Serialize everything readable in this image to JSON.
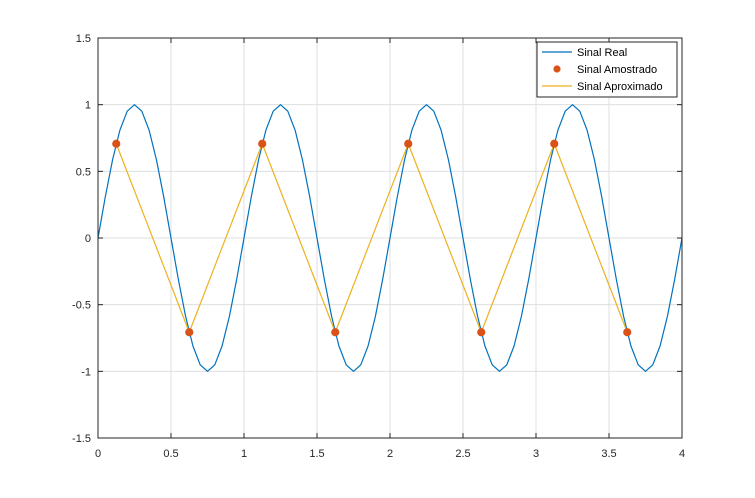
{
  "chart_data": {
    "type": "line",
    "title": "",
    "xlabel": "",
    "ylabel": "",
    "xlim": [
      0,
      4
    ],
    "ylim": [
      -1.5,
      1.5
    ],
    "xticks": [
      0,
      0.5,
      1,
      1.5,
      2,
      2.5,
      3,
      3.5,
      4
    ],
    "xtick_labels": [
      "0",
      "0.5",
      "1",
      "1.5",
      "2",
      "2.5",
      "3",
      "3.5",
      "4"
    ],
    "yticks": [
      -1.5,
      -1,
      -0.5,
      0,
      0.5,
      1,
      1.5
    ],
    "ytick_labels": [
      "-1.5",
      "-1",
      "-0.5",
      "0",
      "0.5",
      "1",
      "1.5"
    ],
    "grid": true,
    "legend_position": "top-right",
    "series": [
      {
        "name": "Sinal Real",
        "style": "line",
        "color": "#0072BD",
        "x": [
          0,
          0.05,
          0.1,
          0.15,
          0.2,
          0.25,
          0.3,
          0.35,
          0.4,
          0.45,
          0.5,
          0.55,
          0.6,
          0.65,
          0.7,
          0.75,
          0.8,
          0.85,
          0.9,
          0.95,
          1,
          1.05,
          1.1,
          1.15,
          1.2,
          1.25,
          1.3,
          1.35,
          1.4,
          1.45,
          1.5,
          1.55,
          1.6,
          1.65,
          1.7,
          1.75,
          1.8,
          1.85,
          1.9,
          1.95,
          2,
          2.05,
          2.1,
          2.15,
          2.2,
          2.25,
          2.3,
          2.35,
          2.4,
          2.45,
          2.5,
          2.55,
          2.6,
          2.65,
          2.7,
          2.75,
          2.8,
          2.85,
          2.9,
          2.95,
          3,
          3.05,
          3.1,
          3.15,
          3.2,
          3.25,
          3.3,
          3.35,
          3.4,
          3.45,
          3.5,
          3.55,
          3.6,
          3.65,
          3.7,
          3.75,
          3.8,
          3.85,
          3.9,
          3.95,
          4
        ],
        "y": [
          0,
          0.309,
          0.588,
          0.809,
          0.951,
          1,
          0.951,
          0.809,
          0.588,
          0.309,
          0,
          -0.309,
          -0.588,
          -0.809,
          -0.951,
          -1,
          -0.951,
          -0.809,
          -0.588,
          -0.309,
          0,
          0.309,
          0.588,
          0.809,
          0.951,
          1,
          0.951,
          0.809,
          0.588,
          0.309,
          0,
          -0.309,
          -0.588,
          -0.809,
          -0.951,
          -1,
          -0.951,
          -0.809,
          -0.588,
          -0.309,
          0,
          0.309,
          0.588,
          0.809,
          0.951,
          1,
          0.951,
          0.809,
          0.588,
          0.309,
          0,
          -0.309,
          -0.588,
          -0.809,
          -0.951,
          -1,
          -0.951,
          -0.809,
          -0.588,
          -0.309,
          0,
          0.309,
          0.588,
          0.809,
          0.951,
          1,
          0.951,
          0.809,
          0.588,
          0.309,
          0,
          -0.309,
          -0.588,
          -0.809,
          -0.951,
          -1,
          -0.951,
          -0.809,
          -0.588,
          -0.309,
          0
        ]
      },
      {
        "name": "Sinal Amostrado",
        "style": "markers",
        "color": "#D95319",
        "x": [
          0.125,
          0.625,
          1.125,
          1.625,
          2.125,
          2.625,
          3.125,
          3.625
        ],
        "y": [
          0.707,
          -0.707,
          0.707,
          -0.707,
          0.707,
          -0.707,
          0.707,
          -0.707
        ]
      },
      {
        "name": "Sinal Aproximado",
        "style": "line",
        "color": "#EDB120",
        "x": [
          0.125,
          0.625,
          1.125,
          1.625,
          2.125,
          2.625,
          3.125,
          3.625
        ],
        "y": [
          0.707,
          -0.707,
          0.707,
          -0.707,
          0.707,
          -0.707,
          0.707,
          -0.707
        ]
      }
    ]
  }
}
